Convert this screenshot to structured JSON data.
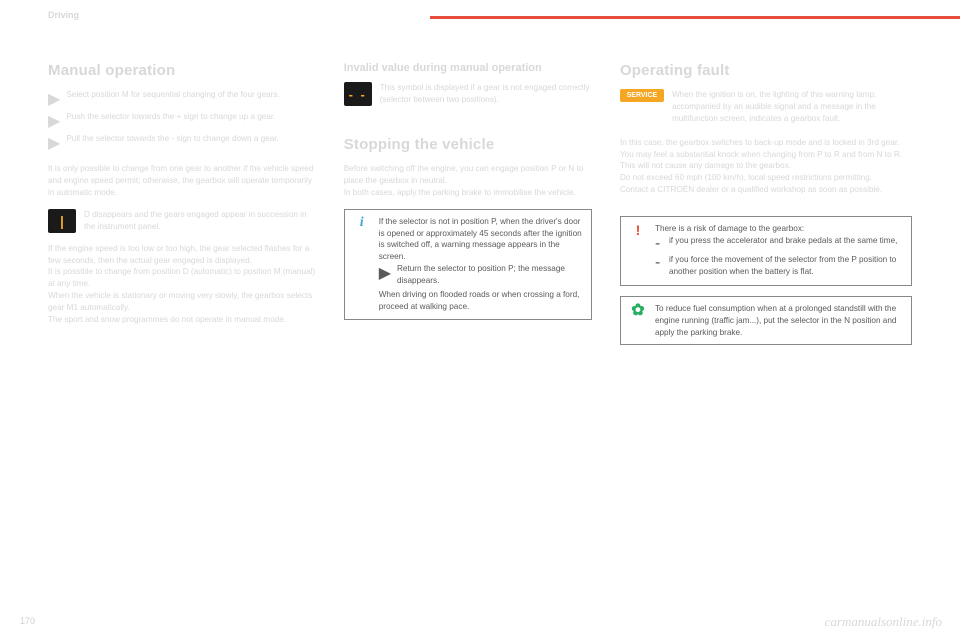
{
  "header": {
    "section_label": "Driving",
    "page_number": "170",
    "watermark": "carmanualsonline.info"
  },
  "left": {
    "title": "Manual operation",
    "bullets": [
      "Select position M for sequential changing of the four gears.",
      "Push the selector towards the + sign to change up a gear.",
      "Pull the selector towards the - sign to change down a gear."
    ],
    "para1": "It is only possible to change from one gear to another if the vehicle speed and engine speed permit; otherwise, the gearbox will operate temporarily in automatic mode.",
    "icon_text": "D disappears and the gears engaged appear in succession in the instrument panel.",
    "para2": "If the engine speed is too low or too high, the gear selected flashes for a few seconds, then the actual gear engaged is displayed.",
    "para3": "It is possible to change from position D (automatic) to position M (manual) at any time.",
    "para4": "When the vehicle is stationary or moving very slowly, the gearbox selects gear M1 automatically.",
    "para5": "The sport and snow programmes do not operate in manual mode."
  },
  "mid": {
    "sub1_title": "Invalid value during manual operation",
    "sub1_text": "This symbol is displayed if a gear is not engaged correctly (selector between two positions).",
    "sub2_title": "Stopping the vehicle",
    "sub2_p1": "Before switching off the engine, you can engage position P or N to place the gearbox in neutral.",
    "sub2_p2": "In both cases, apply the parking brake to immobilise the vehicle.",
    "info_p1": "If the selector is not in position P, when the driver's door is opened or approximately 45 seconds after the ignition is switched off, a warning message appears in the screen.",
    "info_bullet": "Return the selector to position P; the message disappears.",
    "info_p2": "When driving on flooded roads or when crossing a ford, proceed at walking pace."
  },
  "right": {
    "title": "Operating fault",
    "service_label": "SERVICE",
    "service_p1": "When the ignition is on, the lighting of this warning lamp, accompanied by an audible signal and a message in the multifunction screen, indicates a gearbox fault.",
    "service_p2": "In this case, the gearbox switches to back-up mode and is locked in 3rd gear. You may feel a substantial knock when changing from P to R and from N to R. This will not cause any damage to the gearbox.",
    "service_p3": "Do not exceed 60 mph (100 km/h), local speed restrictions permitting.",
    "service_p4": "Contact a CITROËN dealer or a qualified workshop as soon as possible.",
    "warn_intro": "There is a risk of damage to the gearbox:",
    "warn_items": [
      "if you press the accelerator and brake pedals at the same time,",
      "if you force the movement of the selector from the P position to another position when the battery is flat."
    ],
    "eco_text": "To reduce fuel consumption when at a prolonged standstill with the engine running (traffic jam...), put the selector in the N position and apply the parking brake."
  }
}
